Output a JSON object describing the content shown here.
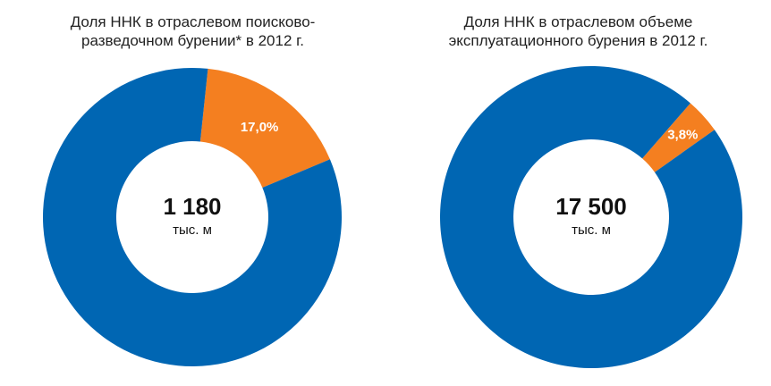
{
  "chart_data": [
    {
      "type": "pie",
      "title_lines": [
        "Доля ННК в отраслевом поисково-",
        "разведочном бурении* в 2012 г."
      ],
      "total_value": "1 180",
      "total_unit": "тыс. м",
      "slices": [
        {
          "value": 83.0,
          "color": "#0066b3"
        },
        {
          "value": 17.0,
          "label": "17,0%",
          "color": "#f47f20"
        }
      ]
    },
    {
      "type": "pie",
      "title_lines": [
        "Доля ННК в отраслевом объеме",
        "эксплуатационного бурения в 2012 г."
      ],
      "total_value": "17 500",
      "total_unit": "тыс. м",
      "slices": [
        {
          "value": 96.2,
          "color": "#0066b3"
        },
        {
          "value": 3.8,
          "label": "3,8%",
          "color": "#f47f20"
        }
      ]
    }
  ]
}
